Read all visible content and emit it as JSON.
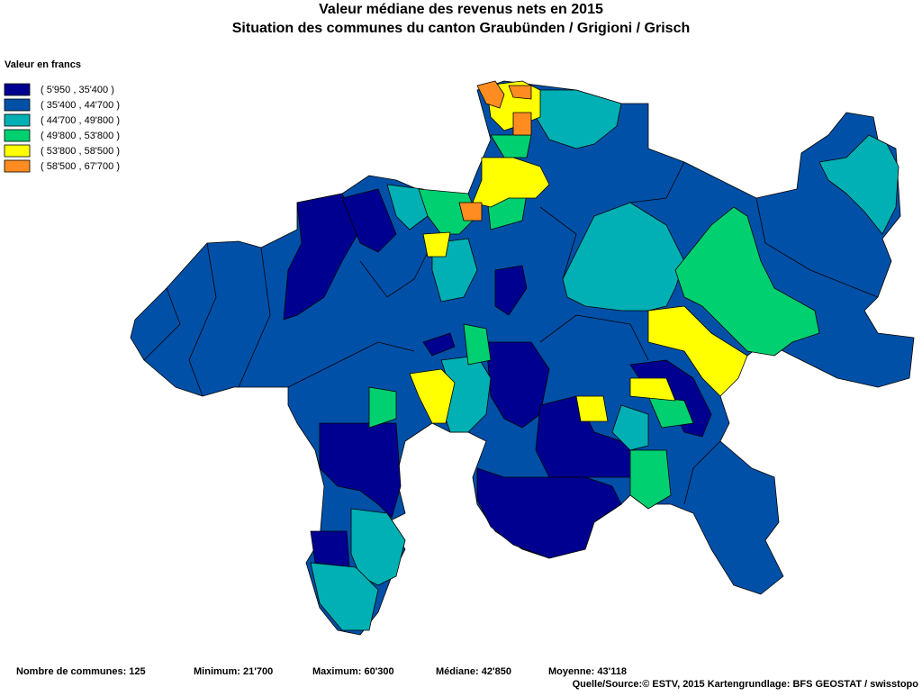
{
  "header": {
    "title": "Valeur médiane des revenus nets en 2015",
    "subtitle": "Situation des communes du canton Graubünden / Grigioni / Grisch"
  },
  "legend": {
    "title": "Valeur en francs",
    "items": [
      {
        "label": "( 5'950 , 35'400 )",
        "color": "#000090"
      },
      {
        "label": "( 35'400 , 44'700 )",
        "color": "#0050a8"
      },
      {
        "label": "( 44'700 , 49'800 )",
        "color": "#00b0b4"
      },
      {
        "label": "( 49'800 , 53'800 )",
        "color": "#00d070"
      },
      {
        "label": "( 53'800 , 58'500 )",
        "color": "#ffff00"
      },
      {
        "label": "( 58'500 , 67'700 )",
        "color": "#ff8c20"
      }
    ]
  },
  "footer": {
    "stats": [
      "Nombre de communes: 125",
      "Minimum: 21'700",
      "Maximum: 60'300",
      "Médiane: 42'850",
      "Moyenne: 43'118"
    ],
    "source": "Quelle/Source:© ESTV, 2015 Kartengrundlage: BFS GEOSTAT / swisstopo"
  }
}
